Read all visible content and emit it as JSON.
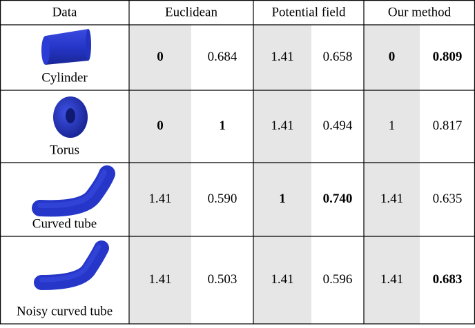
{
  "header": [
    "Data",
    "Euclidean",
    "Potential field",
    "Our method"
  ],
  "rows": [
    {
      "name": "Cylinder",
      "cells": [
        "0",
        "0.684",
        "1.41",
        "0.658",
        "0",
        "0.809"
      ],
      "bold": [
        true,
        false,
        false,
        false,
        true,
        true
      ]
    },
    {
      "name": "Torus",
      "cells": [
        "0",
        "1",
        "1.41",
        "0.494",
        "1",
        "0.817"
      ],
      "bold": [
        true,
        true,
        false,
        false,
        false,
        false
      ]
    },
    {
      "name": "Curved tube",
      "cells": [
        "1.41",
        "0.590",
        "1",
        "0.740",
        "1.41",
        "0.635"
      ],
      "bold": [
        false,
        false,
        true,
        true,
        false,
        false
      ]
    },
    {
      "name": "Noisy curved tube",
      "cells": [
        "1.41",
        "0.503",
        "1.41",
        "0.596",
        "1.41",
        "0.683"
      ],
      "bold": [
        false,
        false,
        false,
        false,
        false,
        true
      ]
    }
  ]
}
